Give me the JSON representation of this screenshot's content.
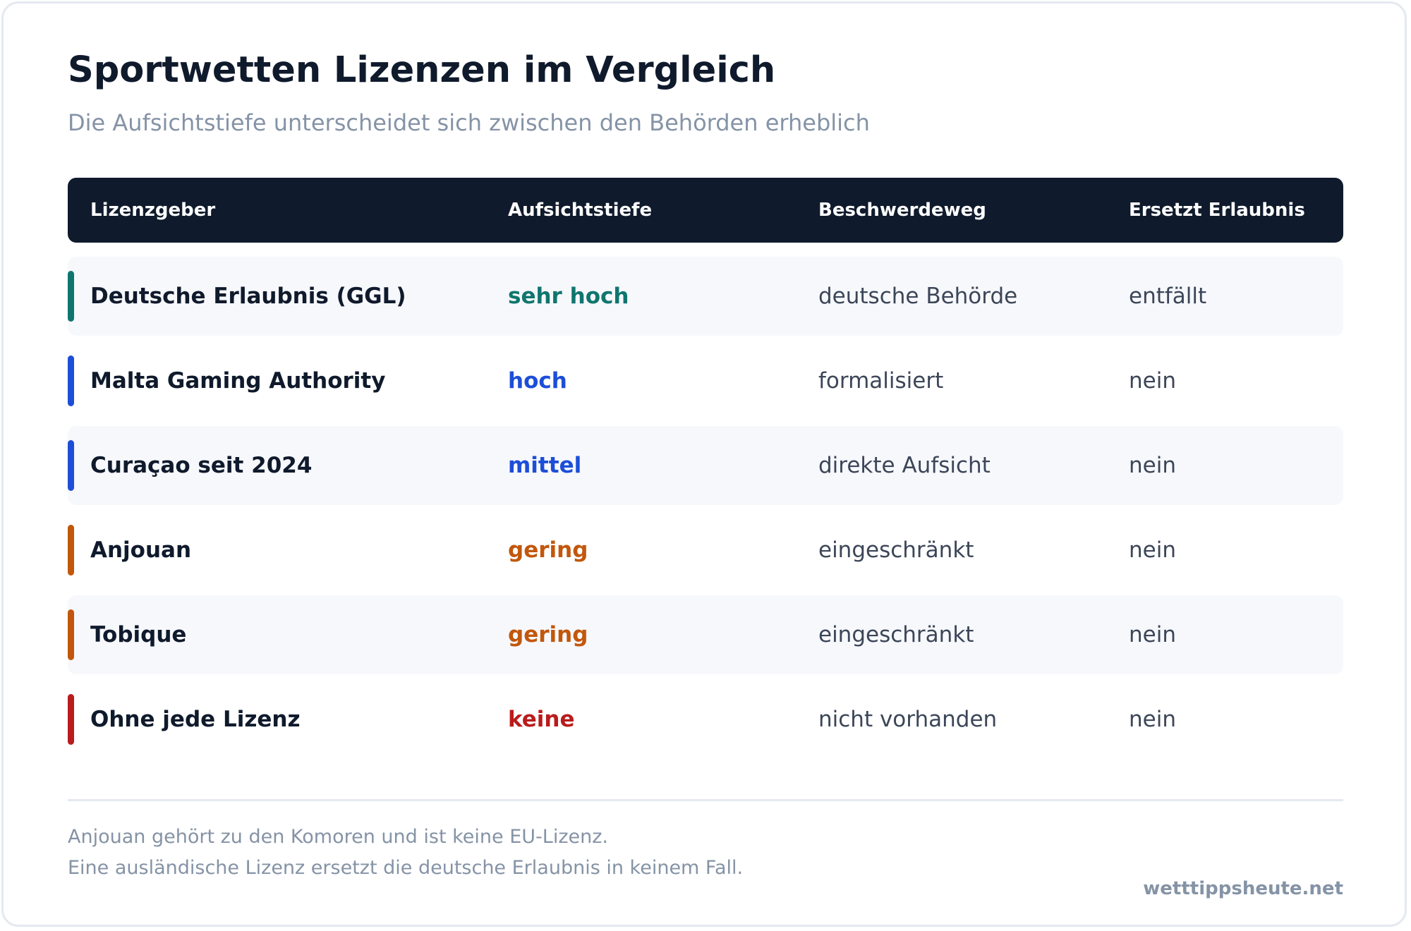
{
  "title": "Sportwetten Lizenzen im Vergleich",
  "subtitle": "Die Aufsichtstiefe unterscheidet sich zwischen den Behörden erheblich",
  "table": {
    "headers": [
      "Lizenzgeber",
      "Aufsichtstiefe",
      "Beschwerdeweg",
      "Ersetzt Erlaubnis"
    ],
    "rows": [
      {
        "name": "Deutsche Erlaubnis (GGL)",
        "level": "sehr hoch",
        "path": "deutsche Behörde",
        "replaces": "entfällt",
        "color": "#0f766e",
        "shaded": true
      },
      {
        "name": "Malta Gaming Authority",
        "level": "hoch",
        "path": "formalisiert",
        "replaces": "nein",
        "color": "#1d4ed8",
        "shaded": false
      },
      {
        "name": "Curaçao seit 2024",
        "level": "mittel",
        "path": "direkte Aufsicht",
        "replaces": "nein",
        "color": "#1d4ed8",
        "shaded": true
      },
      {
        "name": "Anjouan",
        "level": "gering",
        "path": "eingeschränkt",
        "replaces": "nein",
        "color": "#c2570c",
        "shaded": false
      },
      {
        "name": "Tobique",
        "level": "gering",
        "path": "eingeschränkt",
        "replaces": "nein",
        "color": "#c2570c",
        "shaded": true
      },
      {
        "name": "Ohne jede Lizenz",
        "level": "keine",
        "path": "nicht vorhanden",
        "replaces": "nein",
        "color": "#b91c1c",
        "shaded": false
      }
    ]
  },
  "notes": [
    "Anjouan gehört zu den Komoren und ist keine EU-Lizenz.",
    "Eine ausländische Lizenz ersetzt die deutsche Erlaubnis in keinem Fall."
  ],
  "brand": "wetttippsheute.net"
}
